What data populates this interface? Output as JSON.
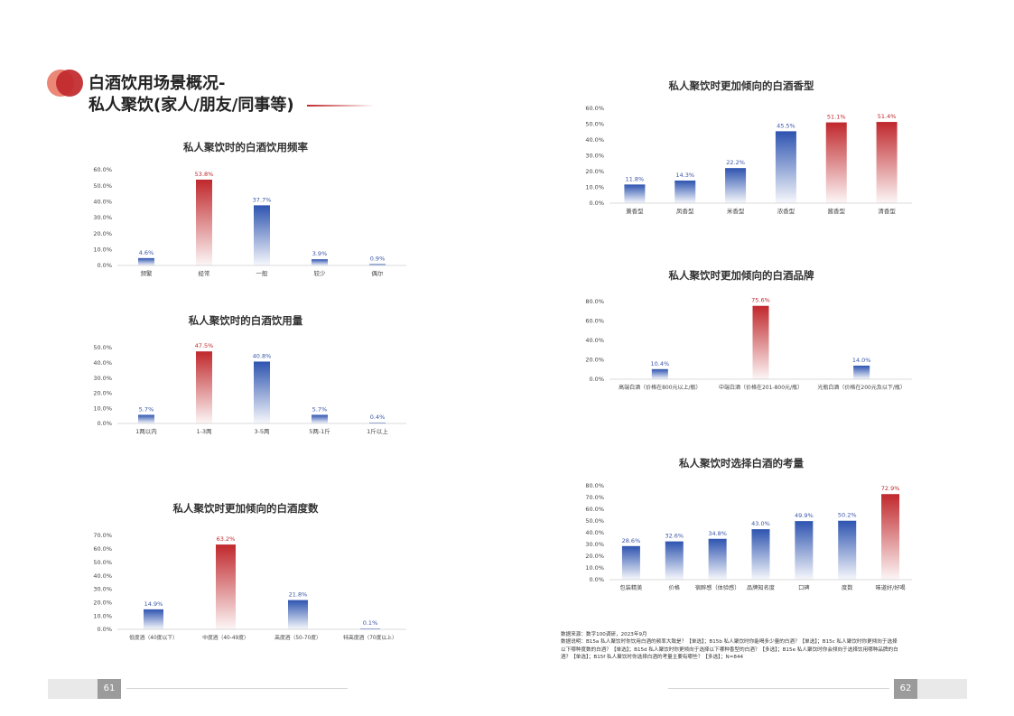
{
  "page": {
    "title_line1": "白酒饮用场景概况-",
    "title_line2": "私人聚饮(家人/朋友/同事等)",
    "left_page_number": "61",
    "right_page_number": "62",
    "notes": [
      "数据来源：数字100调研，2023年9月",
      "数据说明：B15a 私人聚饮时你饮用白酒的频率大致是？【单选】；B15b 私人聚饮时你能喝多少量的白酒？【单选】；B15c 私人聚饮时你更倾向于选择",
      "以下哪种度数的白酒？【单选】；B15d 私人聚饮时你更倾向于选择以下哪种香型的白酒？【多选】；B15e 私人聚饮时你会倾向于选择饮用哪种品牌的白",
      "酒？【单选】；B15f 私人聚饮时你选择白酒的考量主要有哪些？【多选】；N=844"
    ]
  },
  "colors": {
    "red": "#c0282c",
    "blue": "#2e54b0",
    "value_red": "#c0282c",
    "value_blue": "#3a55a8"
  },
  "chart_data": [
    {
      "type": "bar",
      "title": "私人聚饮时的白酒饮用频率",
      "categories": [
        "频繁",
        "经常",
        "一般",
        "较少",
        "偶尔"
      ],
      "values": [
        4.6,
        53.8,
        37.7,
        3.9,
        0.9
      ],
      "value_labels": [
        "4.6%",
        "53.8%",
        "37.7%",
        "3.9%",
        "0.9%"
      ],
      "highlight": [
        1
      ],
      "ylim": [
        0,
        60
      ],
      "yticks": [
        "0.0%",
        "10.0%",
        "20.0%",
        "30.0%",
        "40.0%",
        "50.0%",
        "60.0%"
      ]
    },
    {
      "type": "bar",
      "title": "私人聚饮时的白酒饮用量",
      "categories": [
        "1两以内",
        "1-3两",
        "3-5两",
        "5两-1斤",
        "1斤以上"
      ],
      "values": [
        5.7,
        47.5,
        40.8,
        5.7,
        0.4
      ],
      "value_labels": [
        "5.7%",
        "47.5%",
        "40.8%",
        "5.7%",
        "0.4%"
      ],
      "highlight": [
        1
      ],
      "ylim": [
        0,
        50
      ],
      "yticks": [
        "0.0%",
        "10.0%",
        "20.0%",
        "30.0%",
        "40.0%",
        "50.0%"
      ]
    },
    {
      "type": "bar",
      "title": "私人聚饮时更加倾向的白酒度数",
      "categories": [
        "低度酒（40度以下）",
        "中度酒（40-49度）",
        "高度酒（50-70度）",
        "特高度酒（70度以上）"
      ],
      "values": [
        14.9,
        63.2,
        21.8,
        0.1
      ],
      "value_labels": [
        "14.9%",
        "63.2%",
        "21.8%",
        "0.1%"
      ],
      "highlight": [
        1
      ],
      "ylim": [
        0,
        70
      ],
      "yticks": [
        "0.0%",
        "10.0%",
        "20.0%",
        "30.0%",
        "40.0%",
        "50.0%",
        "60.0%",
        "70.0%"
      ]
    },
    {
      "type": "bar",
      "title": "私人聚饮时更加倾向的白酒香型",
      "categories": [
        "兼香型",
        "凤香型",
        "米香型",
        "浓香型",
        "酱香型",
        "清香型"
      ],
      "values": [
        11.8,
        14.3,
        22.2,
        45.5,
        51.1,
        51.4
      ],
      "value_labels": [
        "11.8%",
        "14.3%",
        "22.2%",
        "45.5%",
        "51.1%",
        "51.4%"
      ],
      "highlight": [
        4,
        5
      ],
      "ylim": [
        0,
        60
      ],
      "yticks": [
        "0.0%",
        "10.0%",
        "20.0%",
        "30.0%",
        "40.0%",
        "50.0%",
        "60.0%"
      ]
    },
    {
      "type": "bar",
      "title": "私人聚饮时更加倾向的白酒品牌",
      "categories": [
        "高端白酒（价格在800元以上/瓶）",
        "中端白酒（价格在201-800元/瓶）",
        "光瓶白酒（价格在200元及以下/瓶）"
      ],
      "values": [
        10.4,
        75.6,
        14.0
      ],
      "value_labels": [
        "10.4%",
        "75.6%",
        "14.0%"
      ],
      "highlight": [
        1
      ],
      "ylim": [
        0,
        80
      ],
      "yticks": [
        "0.0%",
        "20.0%",
        "40.0%",
        "60.0%",
        "80.0%"
      ]
    },
    {
      "type": "bar",
      "title": "私人聚饮时选择白酒的考量",
      "categories": [
        "包装精美",
        "价格",
        "宿醉感（体验感）",
        "品牌知名度",
        "口碑",
        "度数",
        "味道好/好喝"
      ],
      "values": [
        28.6,
        32.6,
        34.8,
        43.0,
        49.9,
        50.2,
        72.9
      ],
      "value_labels": [
        "28.6%",
        "32.6%",
        "34.8%",
        "43.0%",
        "49.9%",
        "50.2%",
        "72.9%"
      ],
      "highlight": [
        6
      ],
      "ylim": [
        0,
        80
      ],
      "yticks": [
        "0.0%",
        "10.0%",
        "20.0%",
        "30.0%",
        "40.0%",
        "50.0%",
        "60.0%",
        "70.0%",
        "80.0%"
      ]
    }
  ]
}
